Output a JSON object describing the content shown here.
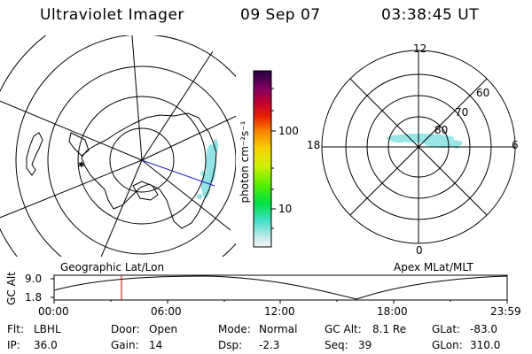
{
  "header": {
    "title": "Ultraviolet Imager",
    "date": "09 Sep 07",
    "time": "03:38:45 UT"
  },
  "colorbar": {
    "label": "photon cm⁻²s⁻¹",
    "ticks": [
      "100",
      "10"
    ]
  },
  "polar": {
    "mlt_labels": [
      "12",
      "18",
      "6",
      "0"
    ],
    "lat_labels": [
      "60",
      "70",
      "80"
    ]
  },
  "footer": {
    "left_label": "Geographic Lat/Lon",
    "right_label": "Apex MLat/MLT",
    "axis_label": "GC Alt",
    "y_ticks": [
      "9.0",
      "1.8"
    ],
    "x_ticks": [
      "00:00",
      "06:00",
      "12:00",
      "18:00",
      "23:59"
    ]
  },
  "info": {
    "flt_label": "Flt:",
    "flt_value": "LBHL",
    "ip_label": "IP:",
    "ip_value": "36.0",
    "door_label": "Door:",
    "door_value": "Open",
    "gain_label": "Gain:",
    "gain_value": "14",
    "mode_label": "Mode:",
    "mode_value": "Normal",
    "dsp_label": "Dsp:",
    "dsp_value": "-2.3",
    "gcalt_label": "GC Alt:",
    "gcalt_value": "8.1 Re",
    "seq_label": "Seq:",
    "seq_value": "39",
    "glat_label": "GLat:",
    "glat_value": "-83.0",
    "glon_label": "GLon:",
    "glon_value": "310.0"
  },
  "colors": {
    "orbit_line": "#000000",
    "time_marker": "#cc0000",
    "view_line": "#2020c0",
    "aurora": "#7fe0e0"
  }
}
